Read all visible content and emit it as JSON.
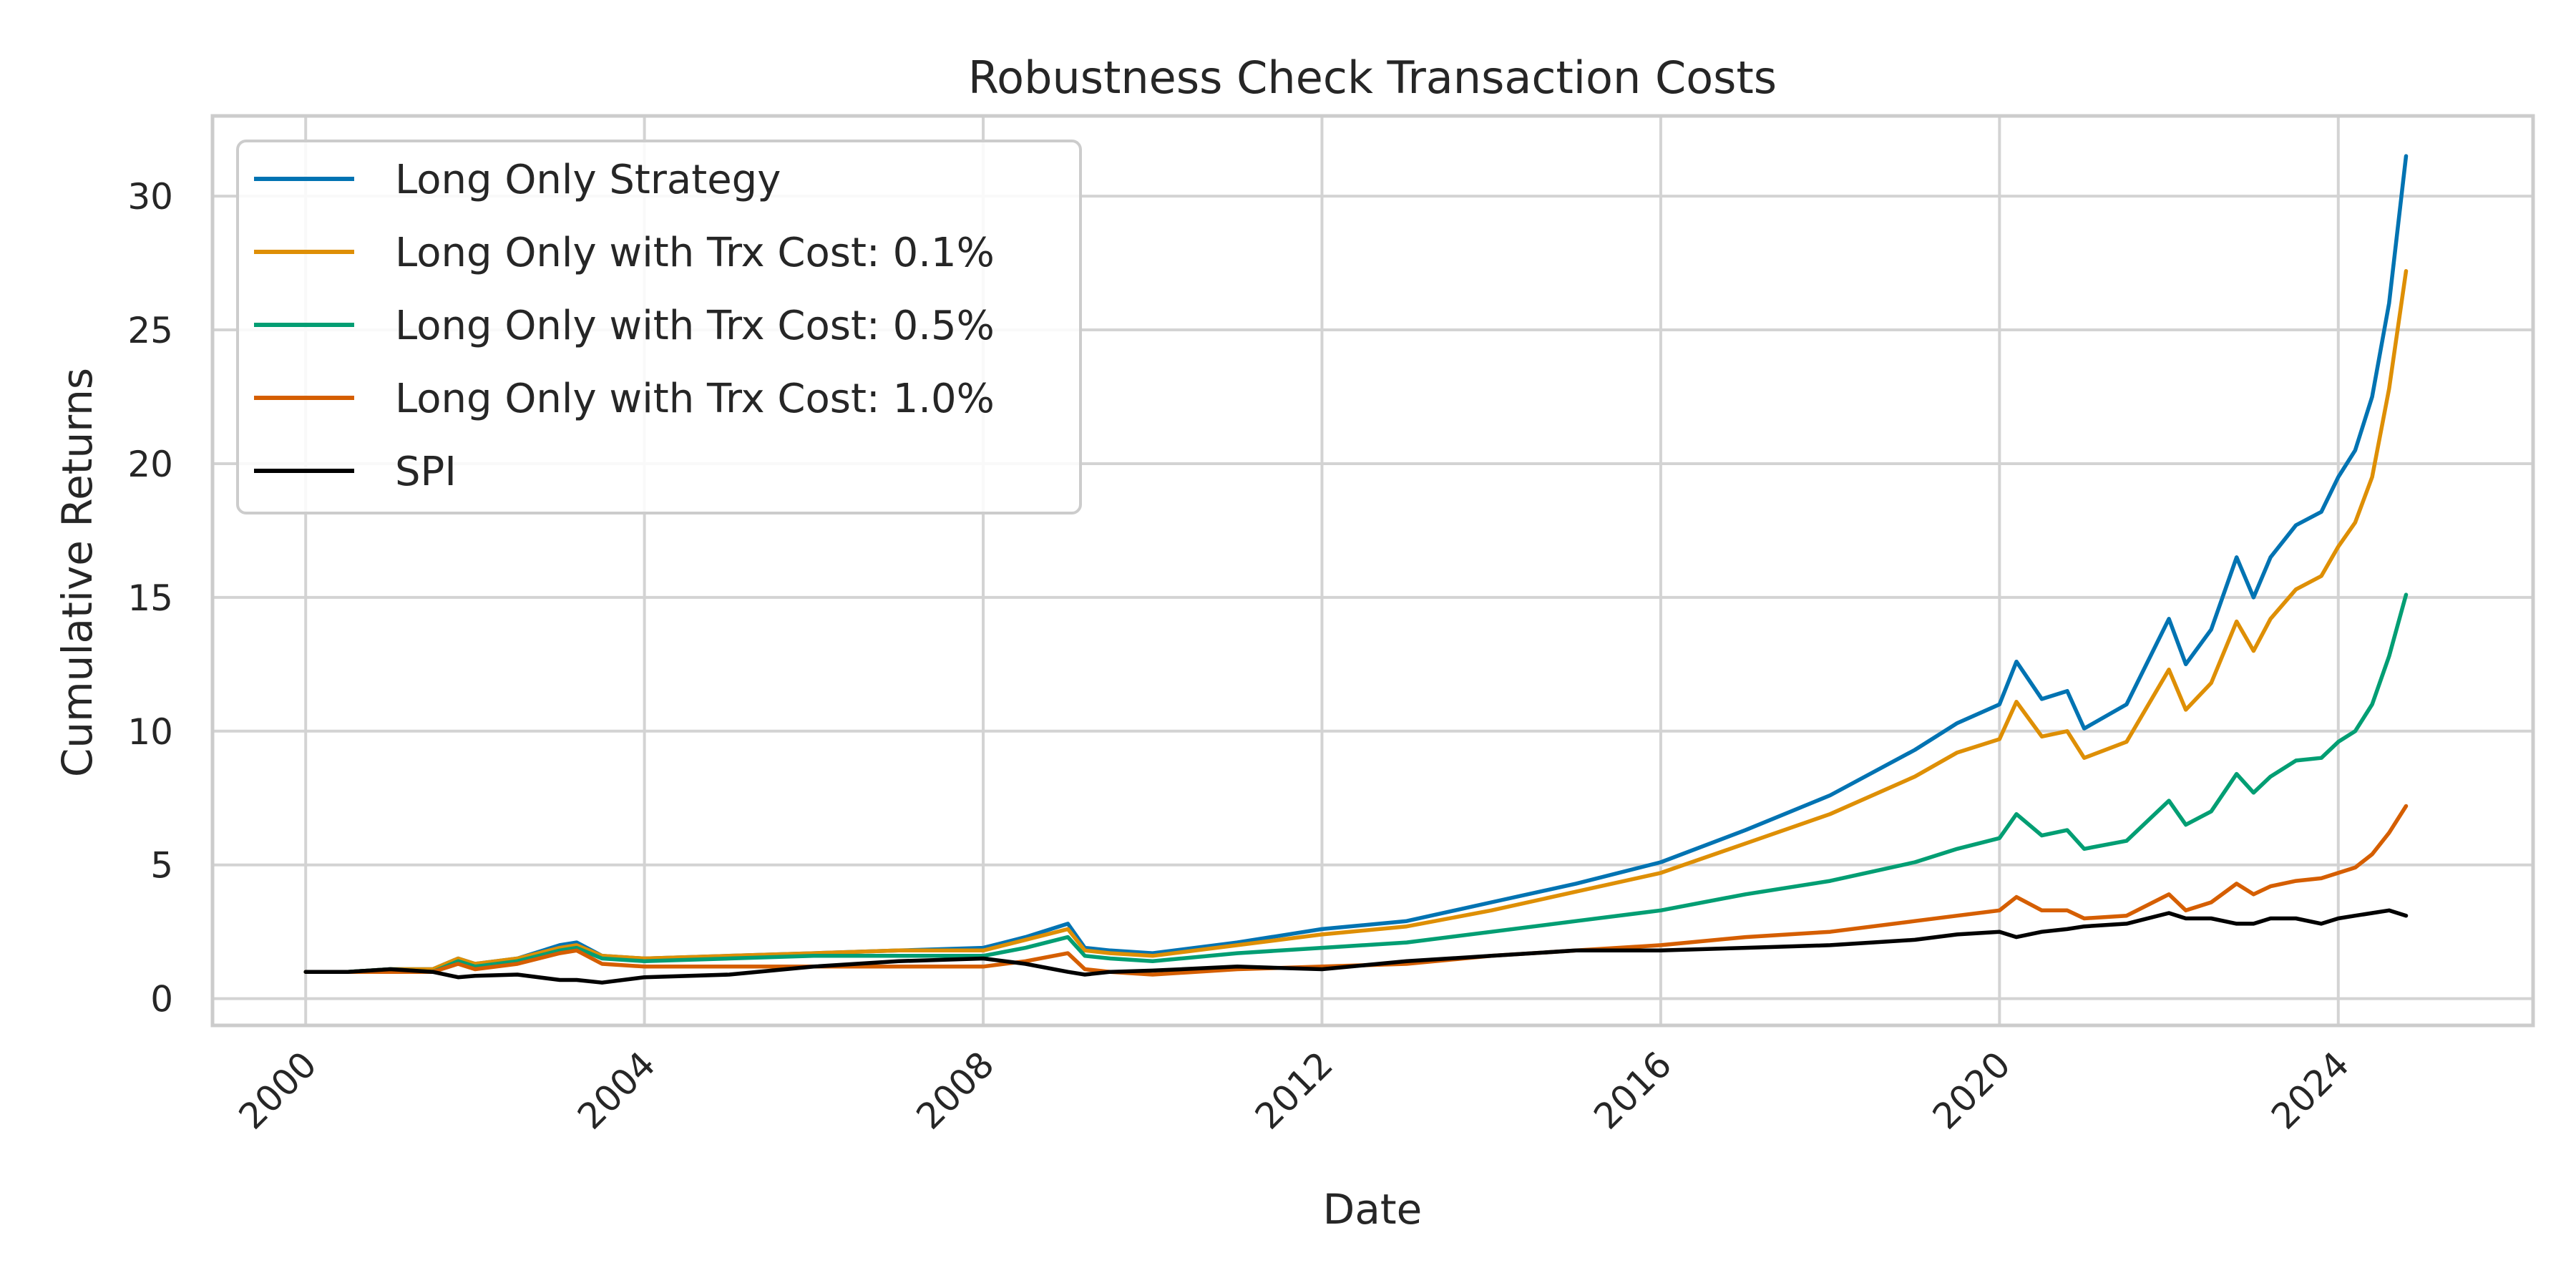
{
  "chart_data": {
    "type": "line",
    "title": "Robustness Check Transaction Costs",
    "xlabel": "Date",
    "ylabel": "Cumulative Returns",
    "xlim": [
      1998.9,
      2026.3
    ],
    "ylim": [
      -1.0,
      33.0
    ],
    "xticks": [
      2000,
      2004,
      2008,
      2012,
      2016,
      2020,
      2024
    ],
    "xtick_labels": [
      "2000",
      "2004",
      "2008",
      "2012",
      "2016",
      "2020",
      "2024"
    ],
    "yticks": [
      0,
      5,
      10,
      15,
      20,
      25,
      30
    ],
    "ytick_labels": [
      "0",
      "5",
      "10",
      "15",
      "20",
      "25",
      "30"
    ],
    "grid": true,
    "legend_position": "top-left",
    "x": [
      2000.0,
      2000.5,
      2001.0,
      2001.5,
      2001.8,
      2002.0,
      2002.5,
      2003.0,
      2003.2,
      2003.5,
      2004.0,
      2005.0,
      2006.0,
      2007.0,
      2008.0,
      2008.5,
      2009.0,
      2009.2,
      2009.5,
      2010.0,
      2011.0,
      2012.0,
      2013.0,
      2014.0,
      2015.0,
      2016.0,
      2017.0,
      2018.0,
      2019.0,
      2019.5,
      2020.0,
      2020.2,
      2020.5,
      2020.8,
      2021.0,
      2021.5,
      2022.0,
      2022.2,
      2022.5,
      2022.8,
      2023.0,
      2023.2,
      2023.5,
      2023.8,
      2024.0,
      2024.2,
      2024.4,
      2024.6,
      2024.8
    ],
    "series": [
      {
        "name": "Long Only Strategy",
        "color": "#0173b2",
        "values": [
          1.0,
          1.0,
          1.1,
          1.1,
          1.5,
          1.3,
          1.5,
          2.0,
          2.1,
          1.6,
          1.5,
          1.6,
          1.7,
          1.8,
          1.9,
          2.3,
          2.8,
          1.9,
          1.8,
          1.7,
          2.1,
          2.6,
          2.9,
          3.6,
          4.3,
          5.1,
          6.3,
          7.6,
          9.3,
          10.3,
          11.0,
          12.6,
          11.2,
          11.5,
          10.1,
          11.0,
          14.2,
          12.5,
          13.8,
          16.5,
          15.0,
          16.5,
          17.7,
          18.2,
          19.5,
          20.5,
          22.5,
          26.0,
          31.5
        ]
      },
      {
        "name": "Long Only with Trx Cost: 0.1%",
        "color": "#de8f05",
        "values": [
          1.0,
          1.0,
          1.1,
          1.1,
          1.5,
          1.3,
          1.5,
          1.9,
          2.0,
          1.6,
          1.5,
          1.6,
          1.7,
          1.8,
          1.8,
          2.2,
          2.6,
          1.8,
          1.7,
          1.6,
          2.0,
          2.4,
          2.7,
          3.3,
          4.0,
          4.7,
          5.8,
          6.9,
          8.3,
          9.2,
          9.7,
          11.1,
          9.8,
          10.0,
          9.0,
          9.6,
          12.3,
          10.8,
          11.8,
          14.1,
          13.0,
          14.2,
          15.3,
          15.8,
          16.9,
          17.8,
          19.5,
          22.8,
          27.2
        ]
      },
      {
        "name": "Long Only with Trx Cost: 0.5%",
        "color": "#029e73",
        "values": [
          1.0,
          1.0,
          1.1,
          1.0,
          1.4,
          1.2,
          1.4,
          1.8,
          1.9,
          1.5,
          1.4,
          1.5,
          1.6,
          1.6,
          1.6,
          1.9,
          2.3,
          1.6,
          1.5,
          1.4,
          1.7,
          1.9,
          2.1,
          2.5,
          2.9,
          3.3,
          3.9,
          4.4,
          5.1,
          5.6,
          6.0,
          6.9,
          6.1,
          6.3,
          5.6,
          5.9,
          7.4,
          6.5,
          7.0,
          8.4,
          7.7,
          8.3,
          8.9,
          9.0,
          9.6,
          10.0,
          11.0,
          12.8,
          15.1
        ]
      },
      {
        "name": "Long Only with Trx Cost: 1.0%",
        "color": "#d55e00",
        "values": [
          1.0,
          1.0,
          1.0,
          1.0,
          1.3,
          1.1,
          1.3,
          1.7,
          1.8,
          1.3,
          1.2,
          1.2,
          1.2,
          1.2,
          1.2,
          1.4,
          1.7,
          1.1,
          1.0,
          0.9,
          1.1,
          1.2,
          1.3,
          1.6,
          1.8,
          2.0,
          2.3,
          2.5,
          2.9,
          3.1,
          3.3,
          3.8,
          3.3,
          3.3,
          3.0,
          3.1,
          3.9,
          3.3,
          3.6,
          4.3,
          3.9,
          4.2,
          4.4,
          4.5,
          4.7,
          4.9,
          5.4,
          6.2,
          7.2
        ]
      },
      {
        "name": "SPI",
        "color": "#000000",
        "values": [
          1.0,
          1.0,
          1.1,
          1.0,
          0.8,
          0.85,
          0.9,
          0.7,
          0.7,
          0.6,
          0.8,
          0.9,
          1.2,
          1.4,
          1.5,
          1.3,
          1.0,
          0.9,
          1.0,
          1.05,
          1.2,
          1.1,
          1.4,
          1.6,
          1.8,
          1.8,
          1.9,
          2.0,
          2.2,
          2.4,
          2.5,
          2.3,
          2.5,
          2.6,
          2.7,
          2.8,
          3.2,
          3.0,
          3.0,
          2.8,
          2.8,
          3.0,
          3.0,
          2.8,
          3.0,
          3.1,
          3.2,
          3.3,
          3.1
        ]
      }
    ]
  }
}
